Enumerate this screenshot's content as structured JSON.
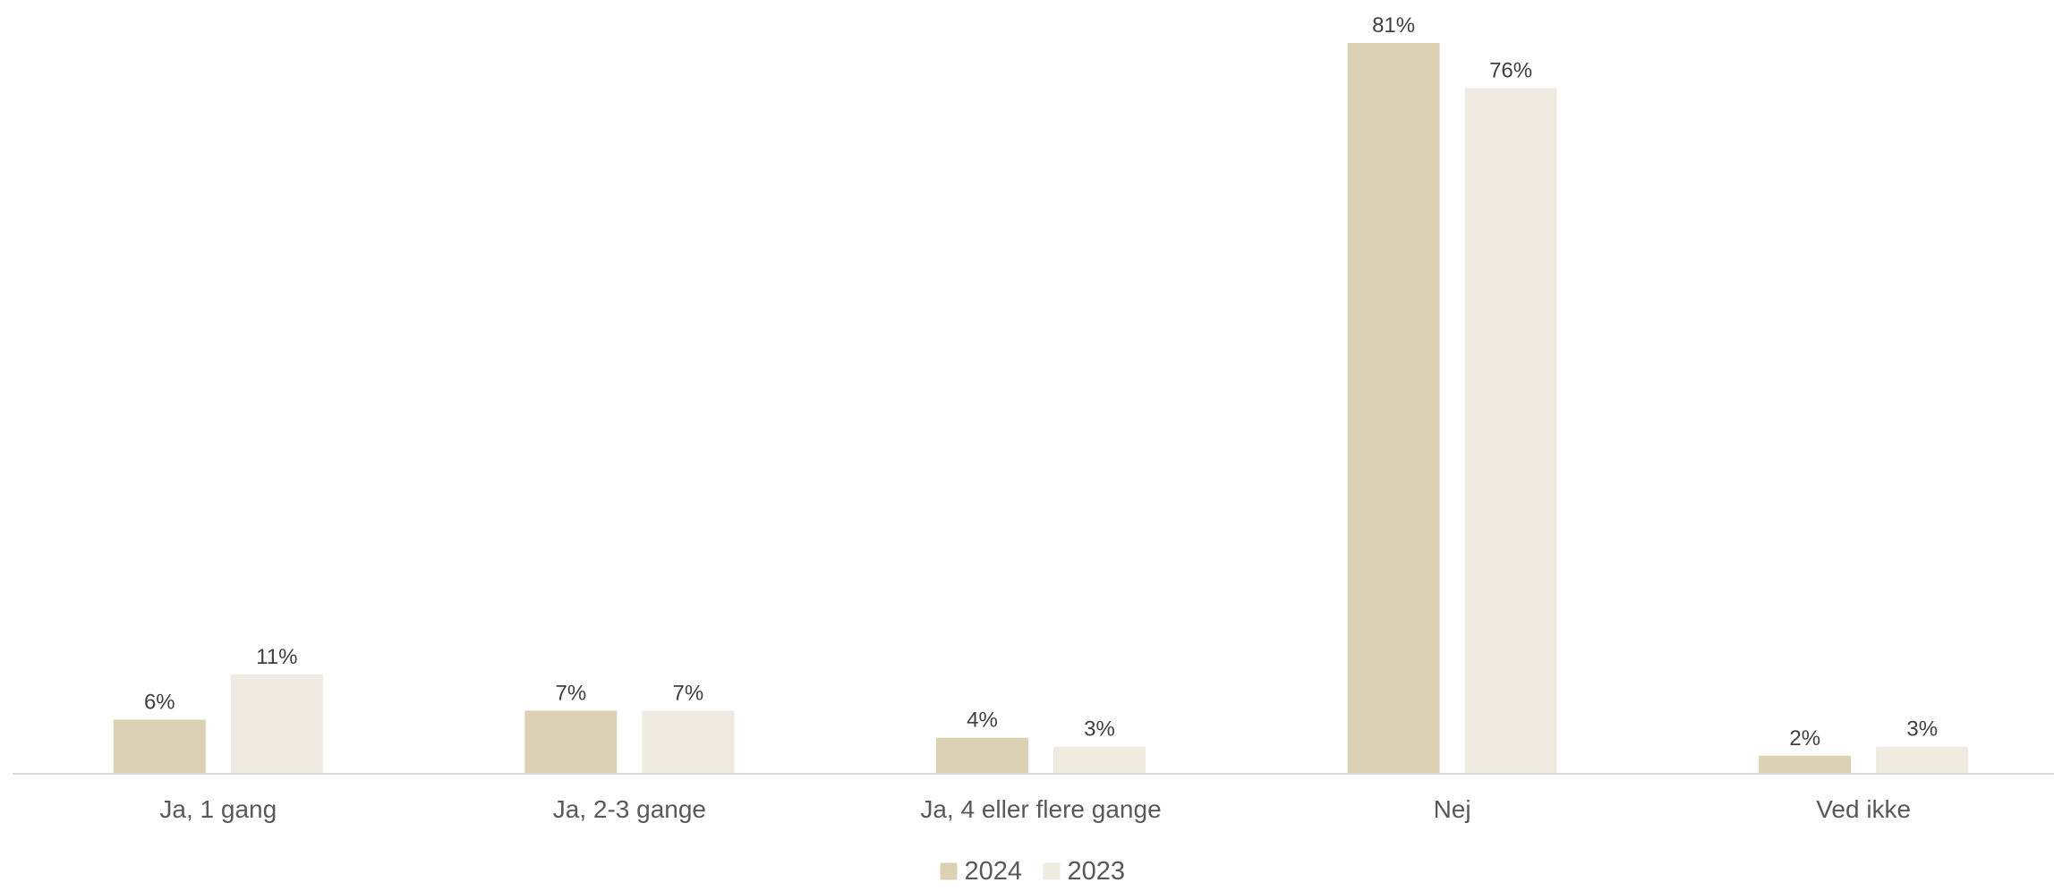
{
  "chart_data": {
    "type": "bar",
    "categories": [
      "Ja, 1 gang",
      "Ja, 2-3 gange",
      "Ja, 4 eller flere gange",
      "Nej",
      "Ved ikke"
    ],
    "series": [
      {
        "name": "2024",
        "values": [
          6,
          7,
          4,
          81,
          2
        ],
        "color": "#dbd1b3"
      },
      {
        "name": "2023",
        "values": [
          11,
          7,
          3,
          76,
          3
        ],
        "color": "#efebe0"
      }
    ],
    "value_suffix": "%",
    "ylim": [
      0,
      81
    ],
    "grid": false,
    "legend_position": "bottom",
    "axis_color": "#d9d9d9"
  }
}
